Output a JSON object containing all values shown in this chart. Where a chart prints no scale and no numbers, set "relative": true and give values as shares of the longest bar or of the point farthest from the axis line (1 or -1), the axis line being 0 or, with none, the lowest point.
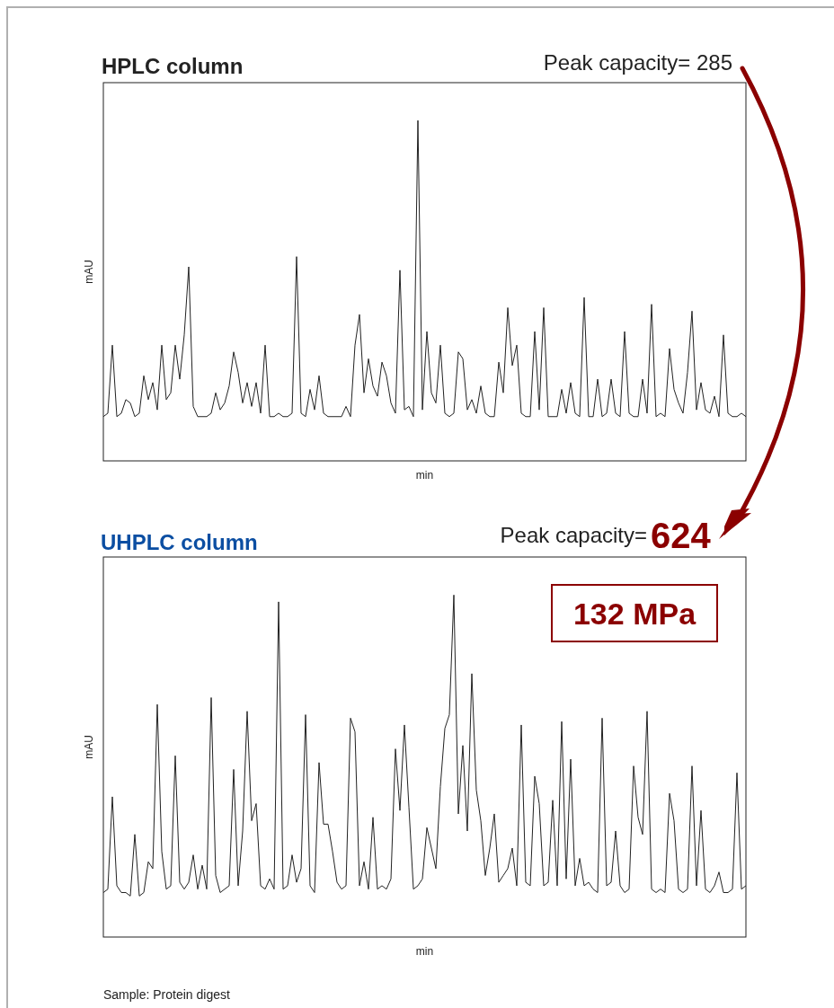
{
  "chart_data": [
    {
      "type": "line",
      "title": "HPLC column",
      "xlabel": "min",
      "ylabel": "mAU",
      "relative": true,
      "color": "#222222",
      "annotations": [
        "Peak capacity= 285"
      ],
      "categories": [
        null,
        null,
        null,
        null,
        null,
        null,
        null,
        null,
        null,
        null,
        null,
        null,
        null,
        null,
        null,
        null,
        null,
        null,
        null,
        null,
        null,
        null,
        null,
        null,
        null,
        null,
        null,
        null,
        null,
        null,
        null,
        null,
        null,
        null,
        null,
        null,
        null,
        null,
        null,
        null,
        null,
        null,
        null,
        null,
        null,
        null,
        null,
        null,
        null,
        null,
        null,
        null,
        null,
        null,
        null,
        null,
        null,
        null,
        null,
        null,
        null,
        null,
        null,
        null,
        null,
        null,
        null,
        null,
        null,
        null,
        null,
        null,
        null,
        null,
        null,
        null,
        null,
        null,
        null,
        null,
        null,
        null,
        null,
        null,
        null,
        null,
        null,
        null,
        null,
        null,
        null,
        null,
        null,
        null,
        null,
        null,
        null,
        null,
        null,
        null,
        null,
        null,
        null,
        null,
        null,
        null,
        null,
        null,
        null,
        null,
        null,
        null,
        null,
        null,
        null,
        null,
        null,
        null,
        null,
        null,
        null,
        null,
        null,
        null,
        null,
        null,
        null,
        null,
        null,
        null,
        null,
        null,
        null,
        null,
        null,
        null,
        null,
        null,
        null,
        null,
        null,
        null,
        null,
        null
      ],
      "values": [
        0.13,
        0.14,
        0.34,
        0.13,
        0.14,
        0.18,
        0.17,
        0.13,
        0.14,
        0.25,
        0.18,
        0.23,
        0.15,
        0.34,
        0.18,
        0.2,
        0.34,
        0.24,
        0.37,
        0.57,
        0.16,
        0.13,
        0.13,
        0.13,
        0.14,
        0.2,
        0.15,
        0.17,
        0.22,
        0.32,
        0.26,
        0.17,
        0.23,
        0.16,
        0.23,
        0.14,
        0.34,
        0.13,
        0.13,
        0.14,
        0.13,
        0.13,
        0.14,
        0.6,
        0.14,
        0.13,
        0.21,
        0.15,
        0.25,
        0.14,
        0.13,
        0.13,
        0.13,
        0.13,
        0.16,
        0.13,
        0.34,
        0.43,
        0.2,
        0.3,
        0.22,
        0.19,
        0.29,
        0.25,
        0.17,
        0.14,
        0.56,
        0.15,
        0.16,
        0.13,
        1,
        0.15,
        0.38,
        0.2,
        0.17,
        0.34,
        0.14,
        0.13,
        0.14,
        0.32,
        0.3,
        0.15,
        0.18,
        0.14,
        0.22,
        0.14,
        0.13,
        0.13,
        0.29,
        0.2,
        0.45,
        0.28,
        0.34,
        0.14,
        0.13,
        0.13,
        0.38,
        0.15,
        0.45,
        0.13,
        0.13,
        0.13,
        0.21,
        0.14,
        0.23,
        0.14,
        0.13,
        0.48,
        0.13,
        0.13,
        0.24,
        0.13,
        0.14,
        0.24,
        0.14,
        0.13,
        0.38,
        0.14,
        0.13,
        0.13,
        0.24,
        0.14,
        0.46,
        0.13,
        0.14,
        0.13,
        0.33,
        0.21,
        0.17,
        0.14,
        0.26,
        0.44,
        0.15,
        0.23,
        0.15,
        0.14,
        0.19,
        0.13,
        0.37,
        0.14,
        0.13,
        0.13,
        0.14,
        0.13
      ]
    },
    {
      "type": "line",
      "title": "UHPLC column",
      "xlabel": "min",
      "ylabel": "mAU",
      "relative": true,
      "color": "#222222",
      "annotations": [
        "Peak capacity=",
        "624",
        "132 MPa",
        "Sample: Protein digest"
      ],
      "categories": [
        null,
        null,
        null,
        null,
        null,
        null,
        null,
        null,
        null,
        null,
        null,
        null,
        null,
        null,
        null,
        null,
        null,
        null,
        null,
        null,
        null,
        null,
        null,
        null,
        null,
        null,
        null,
        null,
        null,
        null,
        null,
        null,
        null,
        null,
        null,
        null,
        null,
        null,
        null,
        null,
        null,
        null,
        null,
        null,
        null,
        null,
        null,
        null,
        null,
        null,
        null,
        null,
        null,
        null,
        null,
        null,
        null,
        null,
        null,
        null,
        null,
        null,
        null,
        null,
        null,
        null,
        null,
        null,
        null,
        null,
        null,
        null,
        null,
        null,
        null,
        null,
        null,
        null,
        null,
        null,
        null,
        null,
        null,
        null,
        null,
        null,
        null,
        null,
        null,
        null,
        null,
        null,
        null,
        null,
        null,
        null,
        null,
        null,
        null,
        null,
        null,
        null,
        null,
        null,
        null,
        null,
        null,
        null,
        null,
        null,
        null,
        null,
        null,
        null,
        null,
        null,
        null,
        null,
        null,
        null,
        null,
        null,
        null,
        null,
        null,
        null,
        null,
        null,
        null,
        null,
        null,
        null,
        null,
        null,
        null,
        null,
        null,
        null,
        null,
        null,
        null,
        null,
        null,
        null
      ],
      "values": [
        0.13,
        0.14,
        0.41,
        0.15,
        0.13,
        0.13,
        0.12,
        0.3,
        0.12,
        0.13,
        0.22,
        0.2,
        0.68,
        0.25,
        0.14,
        0.15,
        0.53,
        0.16,
        0.14,
        0.16,
        0.24,
        0.14,
        0.21,
        0.14,
        0.7,
        0.18,
        0.13,
        0.14,
        0.15,
        0.49,
        0.15,
        0.31,
        0.66,
        0.34,
        0.39,
        0.15,
        0.14,
        0.17,
        0.14,
        0.98,
        0.14,
        0.15,
        0.24,
        0.16,
        0.2,
        0.65,
        0.15,
        0.13,
        0.51,
        0.33,
        0.33,
        0.25,
        0.16,
        0.14,
        0.15,
        0.64,
        0.6,
        0.15,
        0.22,
        0.14,
        0.35,
        0.14,
        0.15,
        0.14,
        0.17,
        0.55,
        0.37,
        0.62,
        0.38,
        0.14,
        0.15,
        0.17,
        0.32,
        0.26,
        0.2,
        0.44,
        0.61,
        0.65,
        1,
        0.36,
        0.56,
        0.31,
        0.77,
        0.43,
        0.34,
        0.18,
        0.26,
        0.36,
        0.16,
        0.18,
        0.2,
        0.26,
        0.15,
        0.62,
        0.16,
        0.15,
        0.47,
        0.39,
        0.15,
        0.16,
        0.4,
        0.15,
        0.63,
        0.17,
        0.52,
        0.15,
        0.23,
        0.15,
        0.16,
        0.14,
        0.13,
        0.64,
        0.15,
        0.16,
        0.31,
        0.15,
        0.13,
        0.14,
        0.5,
        0.35,
        0.3,
        0.66,
        0.14,
        0.13,
        0.14,
        0.13,
        0.42,
        0.34,
        0.14,
        0.13,
        0.14,
        0.5,
        0.15,
        0.37,
        0.14,
        0.13,
        0.15,
        0.19,
        0.13,
        0.13,
        0.14,
        0.48,
        0.14,
        0.15
      ]
    }
  ]
}
